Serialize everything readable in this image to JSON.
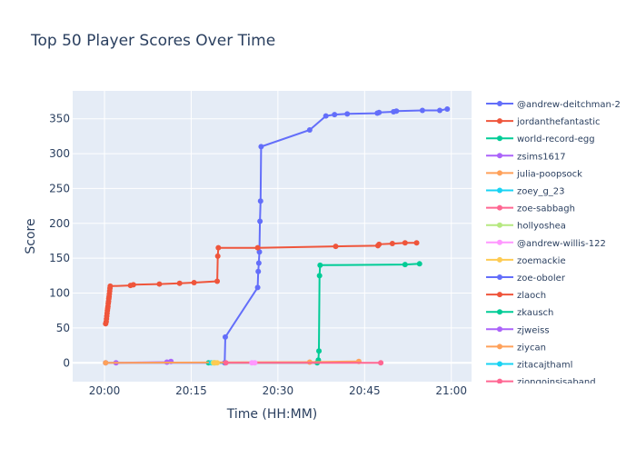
{
  "chart_data": {
    "type": "line",
    "title": "Top 50 Player Scores Over Time",
    "xlabel": "Time (HH:MM)",
    "ylabel": "Score",
    "x_ticks": [
      "20:00",
      "20:15",
      "20:30",
      "20:45",
      "21:00"
    ],
    "x_tick_minutes": [
      0,
      15,
      30,
      45,
      60
    ],
    "y_ticks": [
      0,
      50,
      100,
      150,
      200,
      250,
      300,
      350
    ],
    "xlim_minutes": [
      -5.5,
      63.5
    ],
    "ylim": [
      -27,
      390
    ],
    "grid": true,
    "legend_position": "right",
    "series": [
      {
        "name": "@andrew-deitchman-2",
        "color": "#636efa",
        "x": [
          0.2,
          20.8,
          20.9,
          26.5,
          26.6,
          26.7,
          26.8,
          26.9,
          27.0,
          27.1,
          35.5,
          38.3,
          39.8,
          42.0,
          47.2,
          47.5,
          50.0,
          50.5,
          55.0,
          58.0,
          59.3
        ],
        "y": [
          0,
          0,
          37,
          108,
          131,
          143,
          159,
          203,
          232,
          310,
          334,
          354,
          356,
          357,
          358,
          359,
          360,
          361,
          362,
          362,
          364
        ]
      },
      {
        "name": "jordanthefantastic",
        "color": "#ef553b",
        "x": [
          0.2,
          0.3,
          0.35,
          0.4,
          0.45,
          0.5,
          0.55,
          0.6,
          0.65,
          0.7,
          0.75,
          0.8,
          0.85,
          0.9,
          0.95,
          1.0,
          4.5,
          5.0,
          9.5,
          13.0,
          15.5,
          19.5,
          19.6,
          19.7,
          26.5,
          40.0,
          47.3,
          47.5,
          49.8,
          52.0,
          54.0
        ],
        "y": [
          56,
          59,
          63,
          67,
          71,
          75,
          78,
          81,
          85,
          88,
          92,
          95,
          99,
          103,
          107,
          110,
          111,
          112,
          113,
          114,
          115,
          117,
          153,
          165,
          165,
          167,
          168,
          170,
          171,
          172,
          172
        ]
      },
      {
        "name": "world-record-egg",
        "color": "#00cc96",
        "x": [
          18.0,
          36.8,
          37.0,
          37.1,
          37.2,
          37.3,
          52.0,
          54.5
        ],
        "y": [
          0,
          0,
          4,
          17,
          125,
          140,
          141,
          142
        ]
      },
      {
        "name": "zsims1617",
        "color": "#ab63fa",
        "x": [
          2.0,
          10.8,
          11.5
        ],
        "y": [
          0,
          1,
          2
        ]
      },
      {
        "name": "julia-poopsock",
        "color": "#ffa15a",
        "x": [
          0.2,
          35.5,
          44.0
        ],
        "y": [
          0,
          1,
          2
        ]
      },
      {
        "name": "zoey_g_23",
        "color": "#19d3f3",
        "x": [
          18.5,
          19.0
        ],
        "y": [
          0,
          0
        ]
      },
      {
        "name": "zoe-sabbagh",
        "color": "#ff6692",
        "x": [
          21.0,
          47.8
        ],
        "y": [
          0,
          0
        ]
      },
      {
        "name": "hollyoshea",
        "color": "#b6e880",
        "x": [
          18.8,
          19.2
        ],
        "y": [
          0,
          0
        ]
      },
      {
        "name": "@andrew-willis-122",
        "color": "#ff97ff",
        "x": [
          25.5,
          26.0
        ],
        "y": [
          0,
          0
        ]
      },
      {
        "name": "zoemackie",
        "color": "#fecb52",
        "x": [
          19.0,
          19.5
        ],
        "y": [
          0,
          0
        ]
      },
      {
        "name": "zoe-oboler",
        "color": "#636efa",
        "x": [],
        "y": []
      },
      {
        "name": "zlaoch",
        "color": "#ef553b",
        "x": [],
        "y": []
      },
      {
        "name": "zkausch",
        "color": "#00cc96",
        "x": [],
        "y": []
      },
      {
        "name": "zjweiss",
        "color": "#ab63fa",
        "x": [],
        "y": []
      },
      {
        "name": "ziycan",
        "color": "#ffa15a",
        "x": [],
        "y": []
      },
      {
        "name": "zitacajthaml",
        "color": "#19d3f3",
        "x": [],
        "y": []
      },
      {
        "name": "ziongoinsisaband",
        "color": "#ff6692",
        "x": [],
        "y": []
      }
    ]
  }
}
